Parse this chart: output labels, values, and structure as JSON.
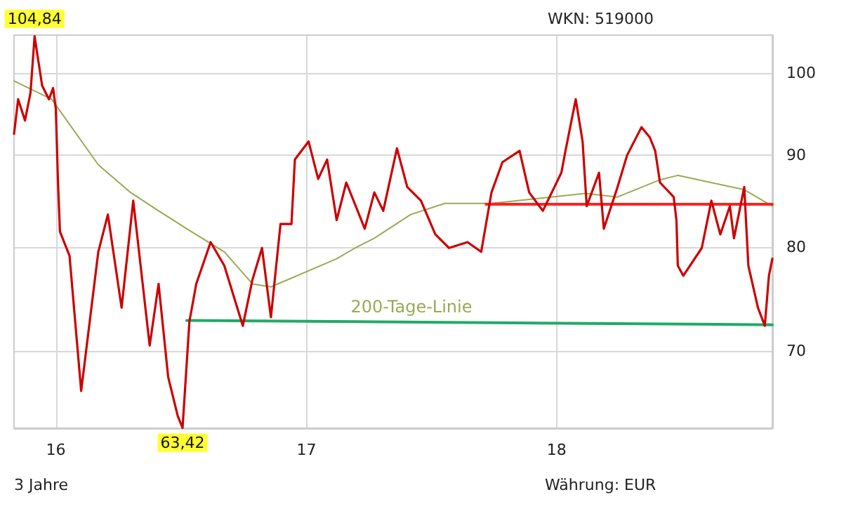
{
  "chart_data": {
    "type": "line",
    "log": "y",
    "grid": true,
    "legend": false,
    "marker": "none",
    "line_style": "solid",
    "xlim": [
      "2015-11-01",
      "2018-11-12"
    ],
    "xticks": [
      {
        "value": "2016-01-01",
        "label": "16"
      },
      {
        "value": "2017-01-01",
        "label": "17"
      },
      {
        "value": "2018-01-01",
        "label": "18"
      }
    ],
    "ylim": [
      63.4,
      105
    ],
    "yticks": [
      70,
      80,
      90,
      100
    ],
    "annotations": [
      "WKN: 519000",
      "3 Jahre",
      "Währung: EUR",
      {
        "text": "104,84",
        "x": "2015-12-01",
        "y": 104.84
      },
      {
        "text": "63,42",
        "x": "2016-07-04",
        "y": 63.42
      }
    ],
    "series": [
      {
        "color": "#cc0000",
        "x": [
          "2015-11-01",
          "2015-11-07",
          "2015-11-17",
          "2015-11-25",
          "2015-12-01",
          "2015-12-12",
          "2015-12-22",
          "2015-12-28",
          "2016-01-01",
          "2016-01-04",
          "2016-01-07",
          "2016-01-21",
          "2016-02-07",
          "2016-03-03",
          "2016-03-17",
          "2016-04-06",
          "2016-04-23",
          "2016-05-17",
          "2016-05-30",
          "2016-06-13",
          "2016-06-27",
          "2016-07-04",
          "2016-07-14",
          "2016-07-24",
          "2016-08-14",
          "2016-09-03",
          "2016-09-30",
          "2016-10-14",
          "2016-10-28",
          "2016-11-10",
          "2016-11-24",
          "2016-12-10",
          "2016-12-15",
          "2017-01-04",
          "2017-01-18",
          "2017-01-31",
          "2017-02-14",
          "2017-02-28",
          "2017-03-27",
          "2017-04-10",
          "2017-04-23",
          "2017-05-13",
          "2017-05-28",
          "2017-06-17",
          "2017-07-08",
          "2017-07-28",
          "2017-08-24",
          "2017-09-13",
          "2017-09-28",
          "2017-10-14",
          "2017-11-08",
          "2017-11-22",
          "2017-12-12",
          "2018-01-08",
          "2018-01-14",
          "2018-01-29",
          "2018-02-08",
          "2018-02-14",
          "2018-03-04",
          "2018-03-11",
          "2018-03-31",
          "2018-04-14",
          "2018-05-05",
          "2018-05-17",
          "2018-05-25",
          "2018-06-01",
          "2018-06-21",
          "2018-06-25",
          "2018-06-27",
          "2018-07-05",
          "2018-08-01",
          "2018-08-15",
          "2018-08-28",
          "2018-09-11",
          "2018-09-17",
          "2018-10-02",
          "2018-10-08",
          "2018-10-22",
          "2018-11-01",
          "2018-11-07",
          "2018-11-12"
        ],
        "values": [
          92.5,
          96.7,
          94.1,
          97.5,
          104.84,
          98.4,
          96.7,
          98.1,
          95.5,
          87.3,
          81.6,
          79.1,
          66.5,
          79.5,
          83.4,
          74.0,
          84.9,
          70.5,
          76.3,
          67.7,
          64.4,
          63.42,
          72.7,
          76.3,
          80.5,
          78.1,
          72.3,
          76.7,
          79.9,
          73.1,
          82.4,
          82.4,
          89.5,
          91.6,
          87.3,
          89.5,
          82.8,
          86.9,
          81.9,
          85.8,
          83.8,
          90.8,
          86.4,
          84.9,
          81.3,
          79.9,
          80.5,
          79.5,
          85.8,
          89.2,
          90.5,
          85.8,
          83.8,
          88.0,
          90.5,
          96.7,
          91.6,
          84.3,
          88.0,
          81.9,
          86.4,
          90.0,
          93.3,
          92.1,
          90.5,
          86.9,
          85.3,
          82.8,
          78.1,
          77.1,
          79.9,
          84.9,
          81.3,
          84.3,
          80.9,
          86.4,
          78.1,
          74.0,
          72.3,
          77.1,
          78.8
        ]
      },
      {
        "name": "200-Tage-Linie",
        "color": "#99aa55",
        "x": [
          "2015-11-01",
          "2015-12-26",
          "2016-03-03",
          "2016-04-19",
          "2016-05-30",
          "2016-07-10",
          "2016-09-03",
          "2016-10-14",
          "2016-11-10",
          "2017-02-14",
          "2017-03-13",
          "2017-04-10",
          "2017-06-02",
          "2017-07-22",
          "2017-09-28",
          "2018-02-12",
          "2018-03-31",
          "2018-06-01",
          "2018-06-27",
          "2018-10-02",
          "2018-11-12"
        ],
        "values": [
          99.0,
          96.7,
          88.9,
          85.8,
          83.8,
          81.9,
          79.5,
          76.3,
          76.0,
          78.8,
          79.9,
          80.9,
          83.4,
          84.6,
          84.6,
          85.7,
          85.3,
          87.2,
          87.7,
          86.1,
          84.3
        ]
      },
      {
        "color": "#ff2222",
        "x": [
          "2017-09-20",
          "2018-11-12"
        ],
        "values": [
          84.5,
          84.5
        ]
      },
      {
        "color": "#22aa66",
        "x": [
          "2016-07-10",
          "2018-11-12"
        ],
        "values": [
          72.8,
          72.4
        ]
      }
    ]
  }
}
